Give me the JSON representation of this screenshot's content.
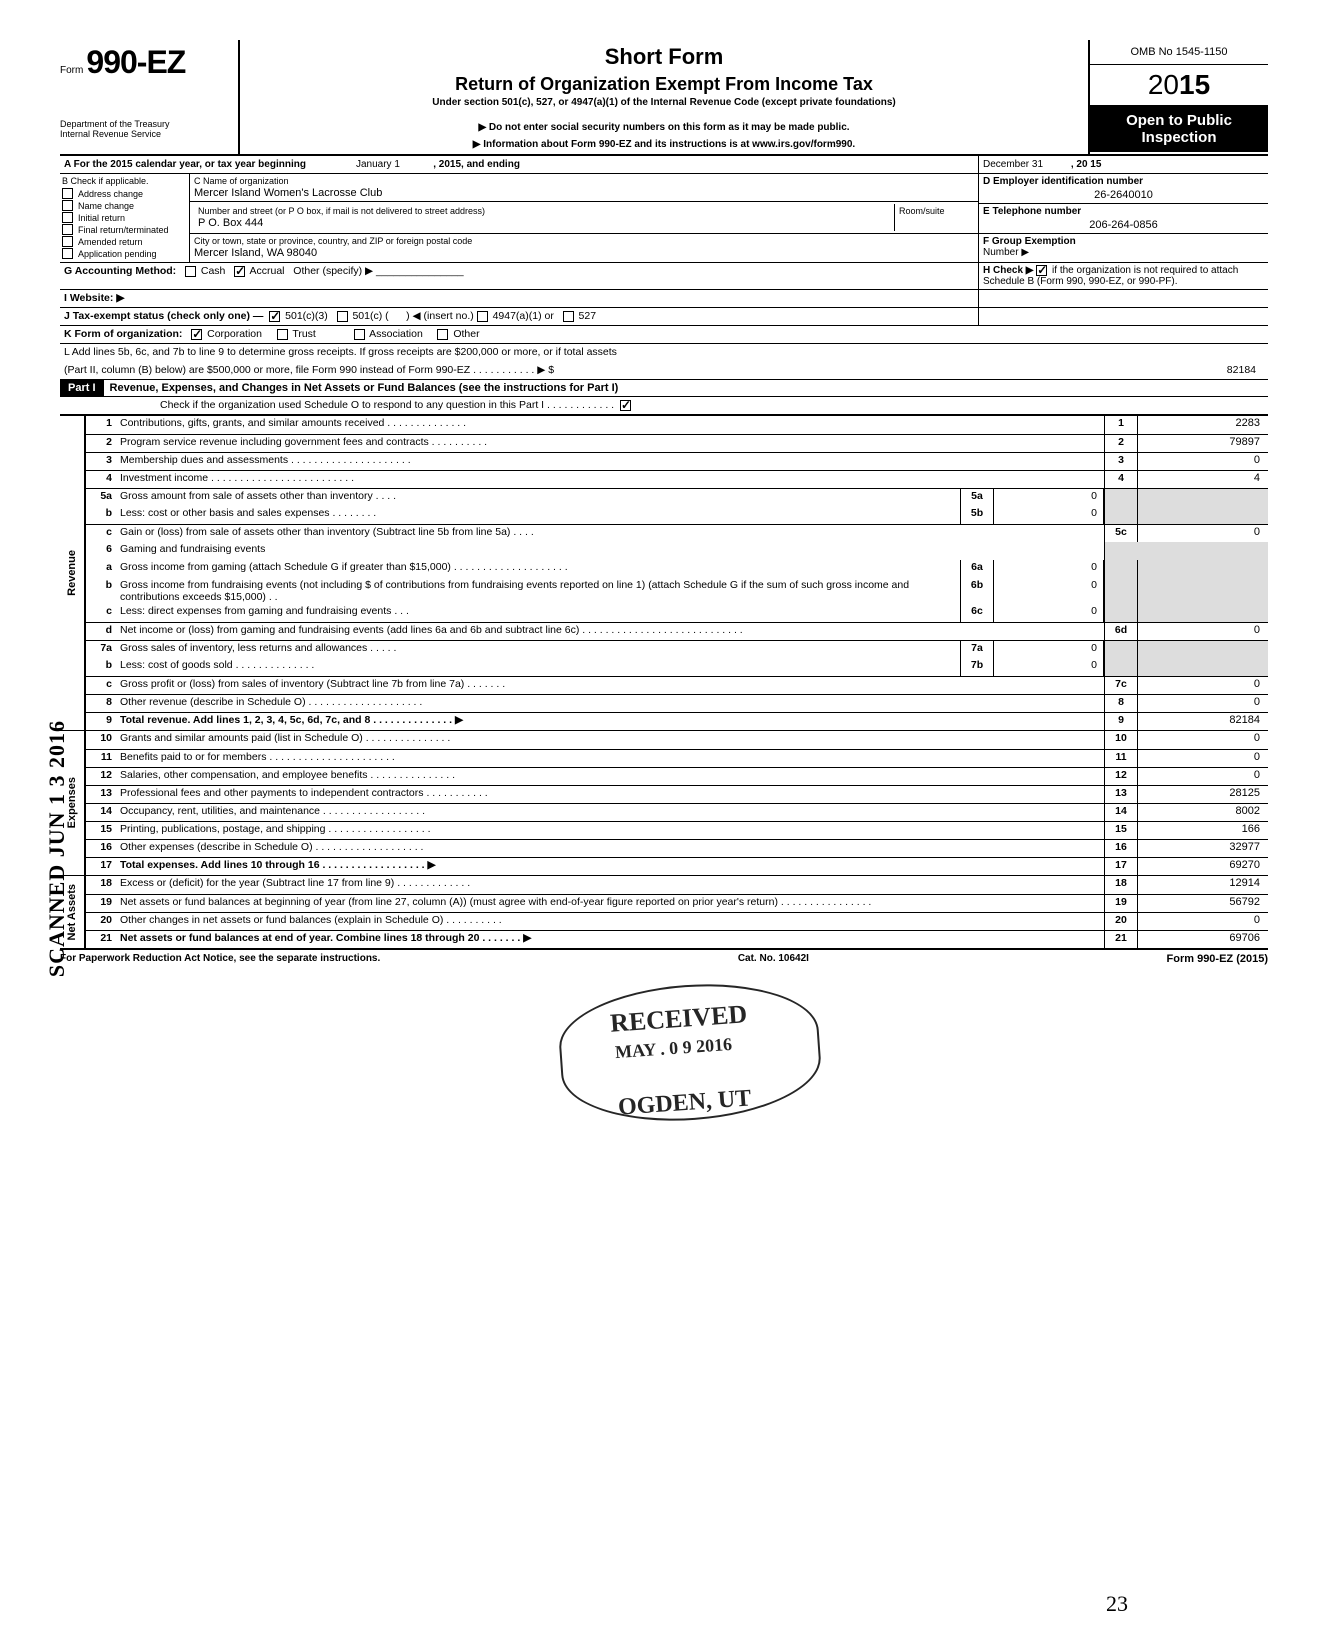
{
  "header": {
    "form_prefix": "Form",
    "form_number": "990-EZ",
    "title1": "Short Form",
    "title2": "Return of Organization Exempt From Income Tax",
    "subtitle": "Under section 501(c), 527, or 4947(a)(1) of the Internal Revenue Code (except private foundations)",
    "note1": "▶ Do not enter social security numbers on this form as it may be made public.",
    "note2": "▶ Information about Form 990-EZ and its instructions is at www.irs.gov/form990.",
    "dept1": "Department of the Treasury",
    "dept2": "Internal Revenue Service",
    "omb": "OMB No  1545-1150",
    "year_prefix": "20",
    "year_bold": "15",
    "open": "Open to Public Inspection"
  },
  "A": {
    "text_a": "A  For the 2015 calendar year, or tax year beginning",
    "begin": "January 1",
    "mid": ", 2015, and ending",
    "end": "December 31",
    "yr": ", 20   15"
  },
  "B": {
    "label": "B  Check if applicable.",
    "items": [
      "Address change",
      "Name change",
      "Initial return",
      "Final return/terminated",
      "Amended return",
      "Application pending"
    ]
  },
  "C": {
    "name_lbl": "C  Name of organization",
    "name": "Mercer Island Women's Lacrosse Club",
    "addr_lbl": "Number and street (or P O  box, if mail is not delivered to street address)",
    "room_lbl": "Room/suite",
    "addr": "P O. Box 444",
    "city_lbl": "City or town, state or province, country, and ZIP or foreign postal code",
    "city": "Mercer Island, WA 98040"
  },
  "D": {
    "lbl": "D Employer identification number",
    "val": "26-2640010"
  },
  "E": {
    "lbl": "E  Telephone number",
    "val": "206-264-0856"
  },
  "F": {
    "lbl": "F  Group Exemption",
    "lbl2": "Number  ▶"
  },
  "G": {
    "lbl": "G  Accounting Method:",
    "cash": "Cash",
    "accrual": "Accrual",
    "other": "Other (specify) ▶"
  },
  "H": {
    "txt": "H  Check ▶",
    "txt2": "if the organization is not required to attach Schedule B (Form 990, 990-EZ, or 990-PF)."
  },
  "I": {
    "lbl": "I   Website: ▶"
  },
  "J": {
    "lbl": "J  Tax-exempt status (check only one) —",
    "a": "501(c)(3)",
    "b": "501(c) (",
    "c": ") ◀ (insert no.)",
    "d": "4947(a)(1) or",
    "e": "527"
  },
  "K": {
    "lbl": "K  Form of organization:",
    "a": "Corporation",
    "b": "Trust",
    "c": "Association",
    "d": "Other"
  },
  "L": {
    "l1": "L  Add lines 5b, 6c, and 7b to line 9 to determine gross receipts. If gross receipts are $200,000 or more, or if total assets",
    "l2": "(Part II, column (B) below) are $500,000 or more, file Form 990 instead of Form 990-EZ .   .   .   .   .   .   .   .   .   .   .   ▶   $",
    "val": "82184"
  },
  "part1": {
    "label": "Part I",
    "title": "Revenue, Expenses, and Changes in Net Assets or Fund Balances (see the instructions for Part I)",
    "check": "Check if the organization used Schedule O to respond to any question in this Part I .   .   .   .   .   .   .   .   .   .   .   ."
  },
  "rev": {
    "1": {
      "n": "1",
      "d": "Contributions, gifts, grants, and similar amounts received .   .   .   .   .   .   .   .   .   .   .   .   .   .",
      "v": "2283"
    },
    "2": {
      "n": "2",
      "d": "Program service revenue including government fees and contracts    .   .   .   .   .   .   .   .   .   .",
      "v": "79897"
    },
    "3": {
      "n": "3",
      "d": "Membership dues and assessments .   .   .   .   .   .   .   .   .   .   .   .   .   .   .   .   .   .   .   .   .",
      "v": "0"
    },
    "4": {
      "n": "4",
      "d": "Investment income    .   .   .   .   .   .   .   .   .   .   .   .   .   .   .   .   .   .   .   .   .   .   .   .   .",
      "v": "4"
    },
    "5a": {
      "n": "5a",
      "d": "Gross amount from sale of assets other than inventory    .   .   .   .",
      "sl": "5a",
      "sv": "0"
    },
    "5b": {
      "n": "b",
      "d": "Less: cost or other basis and sales expenses .   .   .   .   .   .   .   .",
      "sl": "5b",
      "sv": "0"
    },
    "5c": {
      "n": "c",
      "d": "Gain or (loss) from sale of assets other than inventory (Subtract line 5b from line 5a)  .   .   .   .",
      "bl": "5c",
      "v": "0"
    },
    "6": {
      "n": "6",
      "d": "Gaming and fundraising events"
    },
    "6a": {
      "n": "a",
      "d": "Gross income from gaming (attach Schedule G if greater than $15,000) .   .   .   .   .   .   .   .   .   .   .   .   .   .   .   .   .   .   .   .",
      "sl": "6a",
      "sv": "0"
    },
    "6b": {
      "n": "b",
      "d": "Gross income from fundraising events (not including  $                         of contributions from fundraising events reported on line 1) (attach Schedule G if the sum of such gross income and contributions exceeds $15,000) .   .",
      "sl": "6b",
      "sv": "0"
    },
    "6c": {
      "n": "c",
      "d": "Less: direct expenses from gaming and fundraising events   .   .   .",
      "sl": "6c",
      "sv": "0"
    },
    "6d": {
      "n": "d",
      "d": "Net income or (loss) from gaming and fundraising events (add lines 6a and 6b and subtract line 6c)    .   .   .   .   .   .   .   .   .   .   .   .   .   .   .   .   .   .   .   .   .   .   .   .   .   .   .   .",
      "bl": "6d",
      "v": "0"
    },
    "7a": {
      "n": "7a",
      "d": "Gross sales of inventory, less returns and allowances   .   .   .   .   .",
      "sl": "7a",
      "sv": "0"
    },
    "7b": {
      "n": "b",
      "d": "Less: cost of goods sold      .   .   .   .   .   .   .   .   .   .   .   .   .   .",
      "sl": "7b",
      "sv": "0"
    },
    "7c": {
      "n": "c",
      "d": "Gross profit or (loss) from sales of inventory (Subtract line 7b from line 7a)  .   .   .   .   .   .   .",
      "bl": "7c",
      "v": "0"
    },
    "8": {
      "n": "8",
      "d": "Other revenue (describe in Schedule O) .   .   .   .   .   .   .   .   .   .   .   .   .   .   .   .   .   .   .   .",
      "v": "0"
    },
    "9": {
      "n": "9",
      "d": "Total revenue. Add lines 1, 2, 3, 4, 5c, 6d, 7c, and 8   .   .   .   .   .   .   .   .   .   .   .   .   .   .   ▶",
      "v": "82184"
    }
  },
  "exp": {
    "10": {
      "n": "10",
      "d": "Grants and similar amounts paid (list in Schedule O)   .   .   .   .   .   .   .   .   .   .   .   .   .   .   .",
      "v": "0"
    },
    "11": {
      "n": "11",
      "d": "Benefits paid to or for members   .   .   .   .   .   .   .   .   .   .   .   .   .   .   .   .   .   .   .   .   .   .",
      "v": "0"
    },
    "12": {
      "n": "12",
      "d": "Salaries, other compensation, and employee benefits  .   .   .   .   .   .   .   .   .   .   .   .   .   .   .",
      "v": "0"
    },
    "13": {
      "n": "13",
      "d": "Professional fees and other payments to independent contractors   .   .   .   .   .   .   .   .   .   .   .",
      "v": "28125"
    },
    "14": {
      "n": "14",
      "d": "Occupancy, rent, utilities, and maintenance    .   .   .   .   .   .   .   .   .   .   .   .   .   .   .   .   .   .",
      "v": "8002"
    },
    "15": {
      "n": "15",
      "d": "Printing, publications, postage, and shipping .   .   .   .   .   .   .   .   .   .   .   .   .   .   .   .   .   .",
      "v": "166"
    },
    "16": {
      "n": "16",
      "d": "Other expenses (describe in Schedule O)  .   .   .   .   .   .   .   .   .   .   .   .   .   .   .   .   .   .   .",
      "v": "32977"
    },
    "17": {
      "n": "17",
      "d": "Total expenses. Add lines 10 through 16 .   .   .   .   .   .   .   .   .   .   .   .   .   .   .   .   .   .   ▶",
      "v": "69270"
    }
  },
  "net": {
    "18": {
      "n": "18",
      "d": "Excess or (deficit) for the year (Subtract line 17 from line 9)   .   .   .   .   .   .   .   .   .   .   .   .   .",
      "v": "12914"
    },
    "19": {
      "n": "19",
      "d": "Net assets or fund balances at beginning of year (from line 27, column (A)) (must agree with end-of-year figure reported on prior year's return)    .   .   .   .   .   .   .   .   .   .   .   .   .   .   .   .",
      "v": "56792"
    },
    "20": {
      "n": "20",
      "d": "Other changes in net assets or fund balances (explain in Schedule O) .   .   .   .   .   .   .   .   .   .",
      "v": "0"
    },
    "21": {
      "n": "21",
      "d": "Net assets or fund balances at end of year. Combine lines 18 through 20   .   .   .   .   .   .   .   ▶",
      "v": "69706"
    }
  },
  "sections": {
    "rev": "Revenue",
    "exp": "Expenses",
    "net": "Net Assets"
  },
  "footer": {
    "left": "For Paperwork Reduction Act Notice, see the separate instructions.",
    "mid": "Cat. No. 10642I",
    "right": "Form 990-EZ (2015)"
  },
  "stamps": {
    "scanned": "SCANNED JUN 1 3 2016",
    "received": "RECEIVED",
    "date": "MAY . 0 9  2016",
    "ogden": "OGDEN, UT",
    "hand": "23"
  },
  "colors": {
    "text": "#000000",
    "bg": "#ffffff",
    "shade": "#dddddd",
    "header_bg": "#000000",
    "header_fg": "#ffffff"
  }
}
